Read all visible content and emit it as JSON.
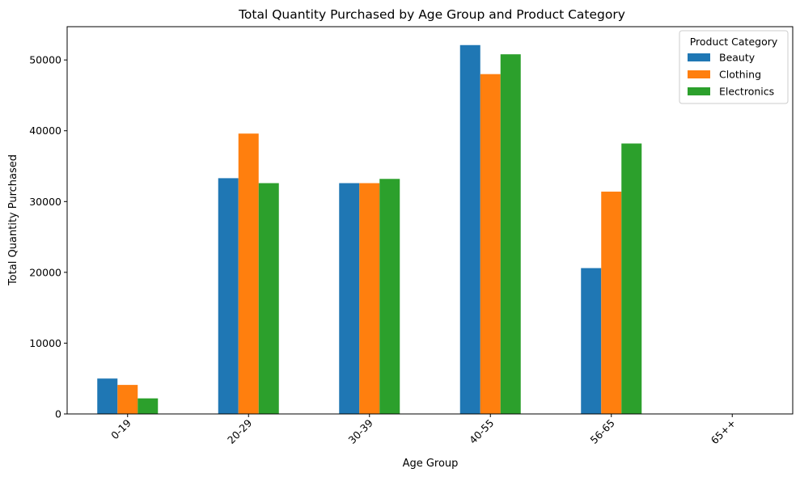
{
  "chart_data": {
    "type": "bar",
    "title": "Total Quantity Purchased by Age Group and Product Category",
    "xlabel": "Age Group",
    "ylabel": "Total Quantity Purchased",
    "categories": [
      "0-19",
      "20-29",
      "30-39",
      "40-55",
      "56-65",
      "65++"
    ],
    "series": [
      {
        "name": "Beauty",
        "color": "#1f77b4",
        "values": [
          5000,
          33300,
          32600,
          52100,
          20600,
          0
        ]
      },
      {
        "name": "Clothing",
        "color": "#ff7f0e",
        "values": [
          4100,
          39600,
          32600,
          48000,
          31400,
          0
        ]
      },
      {
        "name": "Electronics",
        "color": "#2ca02c",
        "values": [
          2200,
          32600,
          33200,
          50800,
          38200,
          0
        ]
      }
    ],
    "ylim": [
      0,
      54700
    ],
    "yticks": [
      0,
      10000,
      20000,
      30000,
      40000,
      50000
    ],
    "grid": false,
    "legend": {
      "title": "Product Category",
      "position": "top-right"
    }
  }
}
